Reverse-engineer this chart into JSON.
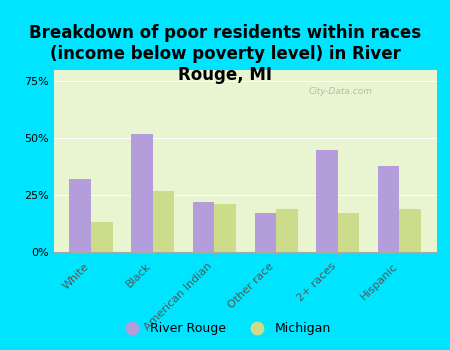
{
  "title": "Breakdown of poor residents within races\n(income below poverty level) in River\nRouge, MI",
  "categories": [
    "White",
    "Black",
    "American Indian",
    "Other race",
    "2+ races",
    "Hispanic"
  ],
  "river_rouge": [
    32,
    52,
    22,
    17,
    45,
    38
  ],
  "michigan": [
    13,
    27,
    21,
    19,
    17,
    19
  ],
  "bar_color_rr": "#b39ddb",
  "bar_color_mi": "#cddc8a",
  "background_color": "#00e5ff",
  "plot_bg": "#e8f5d0",
  "ylim": [
    0,
    80
  ],
  "yticks": [
    0,
    25,
    50,
    75
  ],
  "ytick_labels": [
    "0%",
    "25%",
    "50%",
    "75%"
  ],
  "legend_rr": "River Rouge",
  "legend_mi": "Michigan",
  "title_fontsize": 12,
  "tick_fontsize": 8,
  "watermark": "City-Data.com"
}
